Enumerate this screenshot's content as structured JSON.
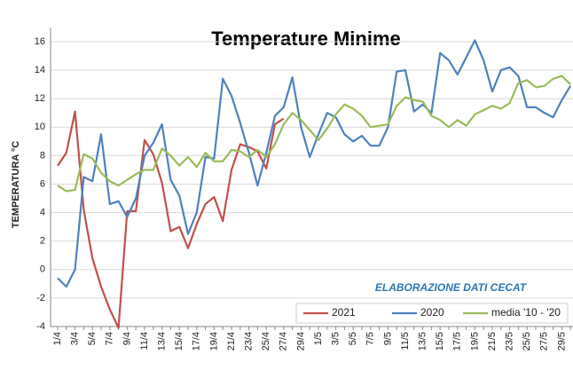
{
  "chart_data": {
    "type": "line",
    "title": "Temperature Minime",
    "y_label": "TEMPERATURA °C",
    "annotation": "ELABORAZIONE DATI CECAT",
    "categories": [
      "1/4",
      null,
      "3/4",
      null,
      "5/4",
      null,
      "7/4",
      null,
      "9/4",
      null,
      "11/4",
      null,
      "13/4",
      null,
      "15/4",
      null,
      "17/4",
      null,
      "19/4",
      null,
      "21/4",
      null,
      "23/4",
      null,
      "25/4",
      null,
      "27/4",
      null,
      "29/4",
      null,
      "1/5",
      null,
      "3/5",
      null,
      "5/5",
      null,
      "7/5",
      null,
      "9/5",
      null,
      "11/5",
      null,
      "13/5",
      null,
      "15/5",
      null,
      "17/5",
      null,
      "19/5",
      null,
      "21/5",
      null,
      "23/5",
      null,
      "25/5",
      null,
      "27/5",
      null,
      "29/5",
      null
    ],
    "series": [
      {
        "name": "2021",
        "color": "#c0504d",
        "values": [
          7.3,
          8.2,
          11.1,
          4.2,
          0.8,
          -1.2,
          -2.8,
          -4.1,
          4.1,
          4.1,
          9.1,
          8.1,
          6.1,
          2.7,
          3.0,
          1.5,
          3.2,
          4.6,
          5.1,
          3.4,
          7.0,
          8.8,
          8.6,
          8.3,
          7.1,
          10.2,
          10.6,
          null,
          null,
          null,
          null,
          null,
          null,
          null,
          null,
          null,
          null,
          null,
          null,
          null,
          null,
          null,
          null,
          null,
          null,
          null,
          null,
          null,
          null,
          null,
          null,
          null,
          null,
          null,
          null,
          null,
          null,
          null,
          null,
          null
        ]
      },
      {
        "name": "2020",
        "color": "#4f81bd",
        "values": [
          -0.6,
          -1.2,
          0.0,
          6.5,
          6.2,
          9.5,
          4.6,
          4.8,
          3.7,
          5.0,
          8.0,
          8.9,
          10.2,
          6.3,
          5.2,
          2.5,
          4.0,
          7.9,
          7.8,
          13.4,
          12.2,
          10.3,
          8.2,
          5.9,
          8.2,
          10.8,
          11.4,
          13.5,
          10.0,
          7.9,
          9.5,
          11.0,
          10.7,
          9.5,
          9.0,
          9.4,
          8.7,
          8.7,
          10.0,
          13.9,
          14.0,
          11.1,
          11.6,
          11.0,
          15.2,
          14.7,
          13.7,
          14.9,
          16.1,
          14.7,
          12.5,
          14.0,
          14.2,
          13.6,
          11.4,
          11.4,
          11.0,
          10.7,
          11.9,
          12.9
        ]
      },
      {
        "name": "media '10 - '20",
        "color": "#9bbb59",
        "values": [
          5.9,
          5.5,
          5.6,
          8.1,
          7.8,
          6.8,
          6.2,
          5.9,
          6.3,
          6.7,
          7.0,
          7.0,
          8.5,
          8.0,
          7.3,
          7.9,
          7.2,
          8.2,
          7.6,
          7.6,
          8.4,
          8.3,
          7.9,
          8.4,
          7.9,
          8.8,
          10.2,
          11.0,
          10.5,
          9.8,
          9.1,
          9.9,
          10.9,
          11.6,
          11.3,
          10.8,
          10.0,
          10.1,
          10.2,
          11.5,
          12.1,
          11.9,
          11.8,
          10.8,
          10.5,
          10.0,
          10.5,
          10.1,
          10.9,
          11.2,
          11.5,
          11.3,
          11.7,
          13.1,
          13.3,
          12.8,
          12.9,
          13.4,
          13.6,
          13.0
        ]
      }
    ],
    "ylim": [
      -4,
      17
    ],
    "yticks": [
      -4,
      -2,
      0,
      2,
      4,
      6,
      8,
      10,
      12,
      14,
      16
    ],
    "grid": true,
    "legend": "bottom-right"
  }
}
